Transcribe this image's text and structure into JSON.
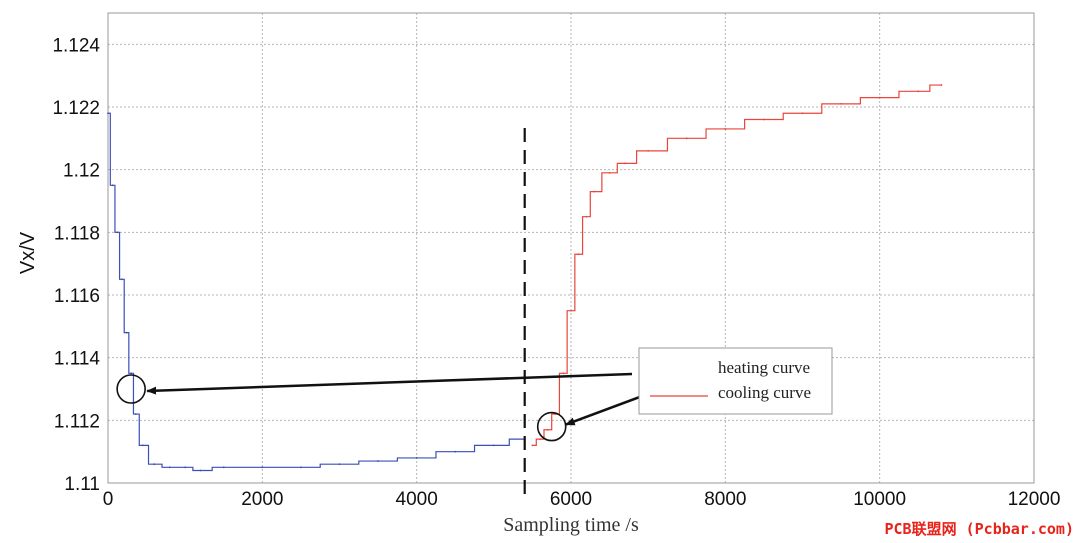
{
  "watermark": "PCB联盟网 (Pcbbar.com)",
  "chart_data": {
    "type": "line",
    "xlabel": "Sampling time /s",
    "ylabel": "Vx/V",
    "xlim": [
      0,
      12000
    ],
    "ylim": [
      1.11,
      1.125
    ],
    "x_ticks": [
      0,
      2000,
      4000,
      6000,
      8000,
      10000,
      12000
    ],
    "x_tick_labels": [
      "0",
      "2000",
      "4000",
      "6000",
      "8000",
      "10000",
      "12000"
    ],
    "y_ticks": [
      1.11,
      1.112,
      1.114,
      1.116,
      1.118,
      1.12,
      1.122,
      1.124
    ],
    "y_tick_labels": [
      "1.11",
      "1.112",
      "1.114",
      "1.116",
      "1.118",
      "1.12",
      "1.122",
      "1.124"
    ],
    "grid": true,
    "legend_position": "right",
    "divider_x": 5400,
    "series": [
      {
        "name": "heating curve",
        "color": "#3b4fb8",
        "x": [
          0,
          60,
          120,
          180,
          240,
          300,
          360,
          450,
          600,
          800,
          1000,
          1200,
          1500,
          2000,
          2500,
          3000,
          3500,
          4000,
          4500,
          5000,
          5400
        ],
        "y": [
          1.1218,
          1.1195,
          1.118,
          1.1165,
          1.1148,
          1.1135,
          1.1122,
          1.1112,
          1.1106,
          1.1105,
          1.1105,
          1.1104,
          1.1105,
          1.1105,
          1.1105,
          1.1106,
          1.1107,
          1.1108,
          1.111,
          1.1112,
          1.1114
        ]
      },
      {
        "name": "cooling curve",
        "color": "#e8453c",
        "x": [
          5500,
          5600,
          5700,
          5800,
          5900,
          6000,
          6100,
          6200,
          6300,
          6500,
          6700,
          7000,
          7500,
          8000,
          8500,
          9000,
          9500,
          10000,
          10500,
          10800
        ],
        "y": [
          1.1112,
          1.1114,
          1.1117,
          1.1122,
          1.1135,
          1.1155,
          1.1173,
          1.1185,
          1.1193,
          1.1199,
          1.1202,
          1.1206,
          1.121,
          1.1213,
          1.1216,
          1.1218,
          1.1221,
          1.1223,
          1.1225,
          1.1227
        ]
      }
    ],
    "annotations": [
      {
        "shape": "circle",
        "x": 300,
        "y": 1.113,
        "target": "heating curve"
      },
      {
        "shape": "circle",
        "x": 5750,
        "y": 1.1118,
        "target": "cooling curve"
      }
    ]
  }
}
